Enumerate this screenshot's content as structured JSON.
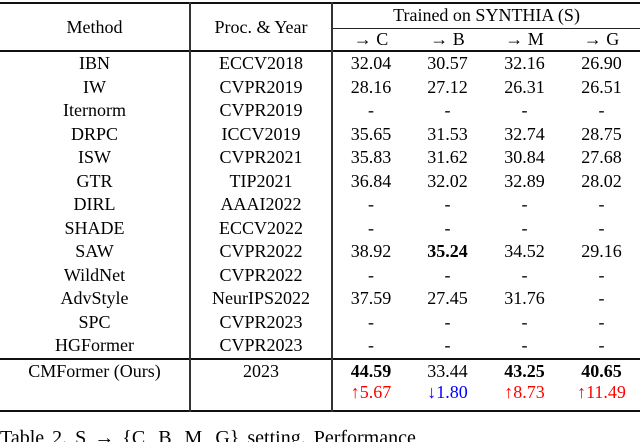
{
  "table": {
    "header": {
      "method": "Method",
      "proc_year": "Proc. & Year",
      "group": "Trained on SYNTHIA (S)",
      "subcols": [
        "→ C",
        "→ B",
        "→ M",
        "→ G"
      ]
    },
    "rows": [
      {
        "method": "IBN",
        "proc": "ECCV2018",
        "values": [
          "32.04",
          "30.57",
          "32.16",
          "26.90"
        ],
        "bold": [
          false,
          false,
          false,
          false
        ]
      },
      {
        "method": "IW",
        "proc": "CVPR2019",
        "values": [
          "28.16",
          "27.12",
          "26.31",
          "26.51"
        ],
        "bold": [
          false,
          false,
          false,
          false
        ]
      },
      {
        "method": "Iternorm",
        "proc": "CVPR2019",
        "values": [
          "-",
          "-",
          "-",
          "-"
        ],
        "bold": [
          false,
          false,
          false,
          false
        ]
      },
      {
        "method": "DRPC",
        "proc": "ICCV2019",
        "values": [
          "35.65",
          "31.53",
          "32.74",
          "28.75"
        ],
        "bold": [
          false,
          false,
          false,
          false
        ]
      },
      {
        "method": "ISW",
        "proc": "CVPR2021",
        "values": [
          "35.83",
          "31.62",
          "30.84",
          "27.68"
        ],
        "bold": [
          false,
          false,
          false,
          false
        ]
      },
      {
        "method": "GTR",
        "proc": "TIP2021",
        "values": [
          "36.84",
          "32.02",
          "32.89",
          "28.02"
        ],
        "bold": [
          false,
          false,
          false,
          false
        ]
      },
      {
        "method": "DIRL",
        "proc": "AAAI2022",
        "values": [
          "-",
          "-",
          "-",
          "-"
        ],
        "bold": [
          false,
          false,
          false,
          false
        ]
      },
      {
        "method": "SHADE",
        "proc": "ECCV2022",
        "values": [
          "-",
          "-",
          "-",
          "-"
        ],
        "bold": [
          false,
          false,
          false,
          false
        ]
      },
      {
        "method": "SAW",
        "proc": "CVPR2022",
        "values": [
          "38.92",
          "35.24",
          "34.52",
          "29.16"
        ],
        "bold": [
          false,
          true,
          false,
          false
        ]
      },
      {
        "method": "WildNet",
        "proc": "CVPR2022",
        "values": [
          "-",
          "-",
          "-",
          "-"
        ],
        "bold": [
          false,
          false,
          false,
          false
        ]
      },
      {
        "method": "AdvStyle",
        "proc": "NeurIPS2022",
        "values": [
          "37.59",
          "27.45",
          "31.76",
          "-"
        ],
        "bold": [
          false,
          false,
          false,
          false
        ]
      },
      {
        "method": "SPC",
        "proc": "CVPR2023",
        "values": [
          "-",
          "-",
          "-",
          "-"
        ],
        "bold": [
          false,
          false,
          false,
          false
        ]
      },
      {
        "method": "HGFormer",
        "proc": "CVPR2023",
        "values": [
          "-",
          "-",
          "-",
          "-"
        ],
        "bold": [
          false,
          false,
          false,
          false
        ]
      }
    ],
    "final_row": {
      "method": "CMFormer (Ours)",
      "proc": "2023",
      "values": [
        "44.59",
        "33.44",
        "43.25",
        "40.65"
      ],
      "bold": [
        true,
        false,
        true,
        true
      ],
      "deltas": [
        {
          "text": "↑5.67",
          "dir": "up"
        },
        {
          "text": "↓1.80",
          "dir": "down"
        },
        {
          "text": "↑8.73",
          "dir": "up"
        },
        {
          "text": "↑11.49",
          "dir": "up"
        }
      ]
    },
    "colors": {
      "up": "#ff0000",
      "down": "#0000ff"
    }
  },
  "caption": "Table 2. S → {C, B, M, G} setting. Performance"
}
